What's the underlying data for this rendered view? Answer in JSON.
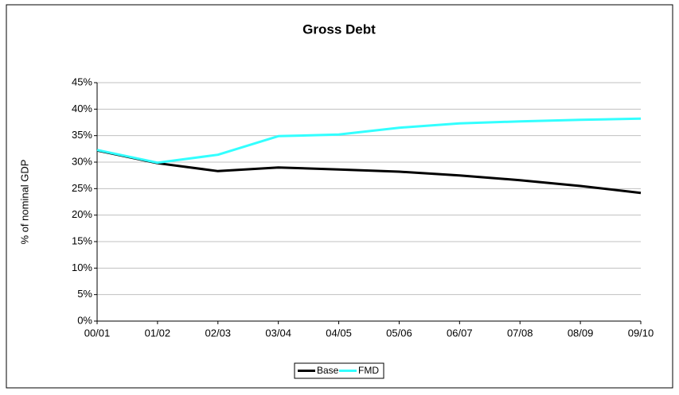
{
  "chart_data": {
    "type": "line",
    "title": "Gross Debt",
    "y_label": "% of nominal GDP",
    "categories": [
      "00/01",
      "01/02",
      "02/03",
      "03/04",
      "04/05",
      "05/06",
      "06/07",
      "07/08",
      "08/09",
      "09/10"
    ],
    "series": [
      {
        "name": "Base",
        "color": "#000000",
        "values": [
          32.2,
          29.8,
          28.3,
          29.0,
          28.6,
          28.2,
          27.5,
          26.6,
          25.5,
          24.2
        ]
      },
      {
        "name": "FMD",
        "color": "#33ffff",
        "values": [
          32.3,
          29.9,
          31.4,
          34.9,
          35.2,
          36.5,
          37.3,
          37.7,
          38.0,
          38.2
        ]
      }
    ],
    "ylim": [
      0,
      45
    ],
    "yticks": [
      {
        "value": 0,
        "label": "0%"
      },
      {
        "value": 5,
        "label": "5%"
      },
      {
        "value": 10,
        "label": "10%"
      },
      {
        "value": 15,
        "label": "15%"
      },
      {
        "value": 20,
        "label": "20%"
      },
      {
        "value": 25,
        "label": "25%"
      },
      {
        "value": 30,
        "label": "30%"
      },
      {
        "value": 35,
        "label": "35%"
      },
      {
        "value": 40,
        "label": "40%"
      },
      {
        "value": 45,
        "label": "45%"
      }
    ],
    "grid": true,
    "legend": "bottom"
  }
}
